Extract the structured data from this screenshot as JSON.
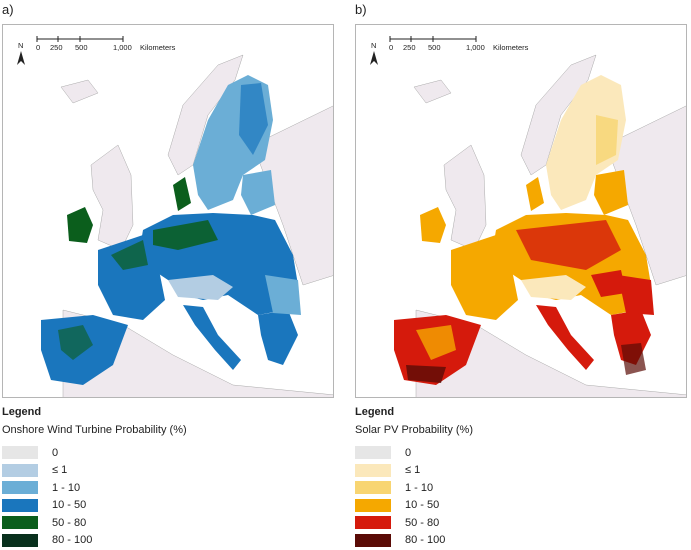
{
  "panels": [
    {
      "label": "a)",
      "scale": {
        "ticks": [
          "0",
          "250",
          "500",
          "1,000"
        ],
        "unit": "Kilometers"
      },
      "north": "N",
      "legend": {
        "title": "Legend",
        "subtitle": "Onshore Wind Turbine Probability (%)",
        "items": [
          {
            "label": "0",
            "color": "#e6e6e6"
          },
          {
            "label": "≤ 1",
            "color": "#b3cde3"
          },
          {
            "label": "1 - 10",
            "color": "#6baed6"
          },
          {
            "label": "10 - 50",
            "color": "#1a76bd"
          },
          {
            "label": "50 - 80",
            "color": "#0b5e1c"
          },
          {
            "label": "80 - 100",
            "color": "#08301d"
          }
        ]
      }
    },
    {
      "label": "b)",
      "scale": {
        "ticks": [
          "0",
          "250",
          "500",
          "1,000"
        ],
        "unit": "Kilometers"
      },
      "north": "N",
      "legend": {
        "title": "Legend",
        "subtitle": "Solar PV Probability (%)",
        "items": [
          {
            "label": "0",
            "color": "#e6e6e6"
          },
          {
            "label": "≤ 1",
            "color": "#fbe8bb"
          },
          {
            "label": "1 - 10",
            "color": "#f8d572"
          },
          {
            "label": "10 - 50",
            "color": "#f5a800"
          },
          {
            "label": "50 - 80",
            "color": "#d51a0c"
          },
          {
            "label": "80 - 100",
            "color": "#5a0b06"
          }
        ]
      }
    }
  ]
}
